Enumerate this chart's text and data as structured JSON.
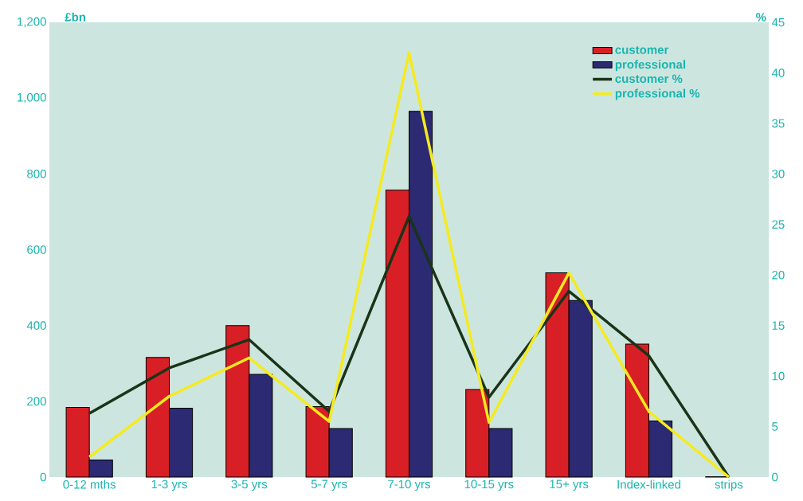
{
  "chart_data": {
    "type": "bar",
    "ylabel": "£bn",
    "y2label": "%",
    "categories": [
      "0-12 mths",
      "1-3 yrs",
      "3-5 yrs",
      "5-7 yrs",
      "7-10 yrs",
      "10-15 yrs",
      "15+ yrs",
      "Index-linked",
      "strips"
    ],
    "series": [
      {
        "name": "customer",
        "color": "#d91f26",
        "values": [
          184,
          316,
          400,
          186,
          757,
          231,
          539,
          351,
          1
        ]
      },
      {
        "name": "professional",
        "color": "#2b2a72",
        "values": [
          45,
          182,
          271,
          128,
          965,
          128,
          466,
          148,
          null
        ]
      },
      {
        "name": "customer %",
        "type": "line",
        "axis": "y2",
        "color": "#1b3318",
        "values": [
          6.3,
          10.8,
          13.6,
          6.5,
          25.8,
          7.9,
          18.4,
          12.0,
          0
        ]
      },
      {
        "name": "professional %",
        "type": "line",
        "axis": "y2",
        "color": "#f5ea20",
        "values": [
          2.0,
          8.0,
          11.8,
          5.5,
          42.0,
          5.4,
          20.2,
          6.5,
          0
        ]
      }
    ],
    "ylim": [
      0,
      1200
    ],
    "yticks": [
      0,
      200,
      400,
      600,
      800,
      {
        "value": 1000,
        "label": "1,000"
      },
      {
        "value": 1200,
        "label": "1,200"
      }
    ],
    "y2lim": [
      0,
      45
    ],
    "y2ticks": [
      0,
      5,
      10,
      15,
      20,
      25,
      30,
      35,
      40,
      45
    ],
    "legend": "top right"
  }
}
